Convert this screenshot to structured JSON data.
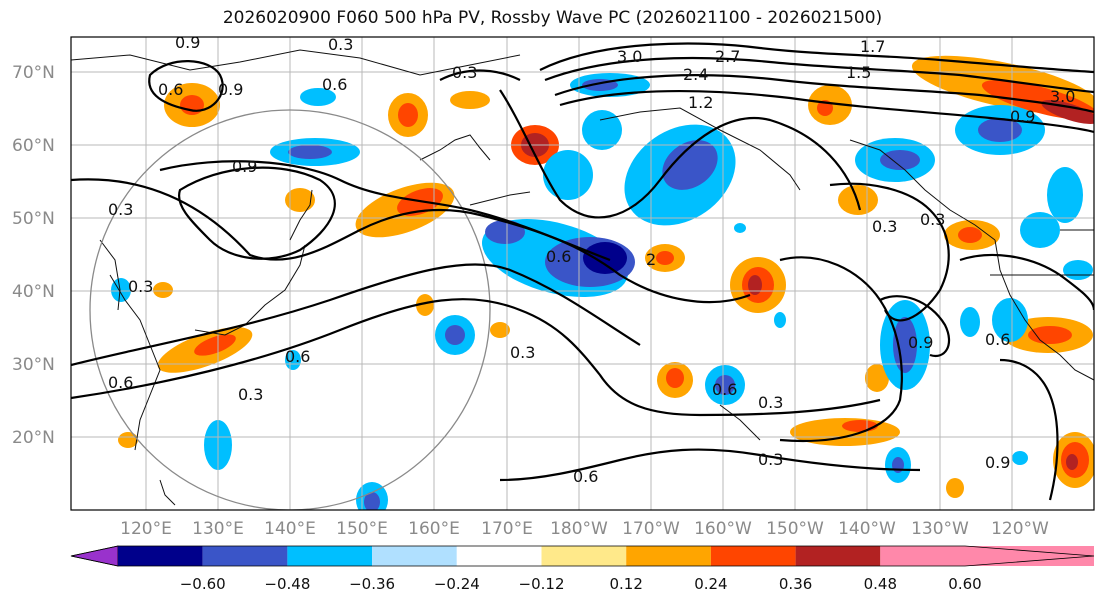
{
  "title": "2026020900 F060 500 hPa PV, Rossby Wave PC (2026021100 - 2026021500)",
  "map": {
    "lat_labels": [
      "70°N",
      "60°N",
      "50°N",
      "40°N",
      "30°N",
      "20°N"
    ],
    "lon_labels": [
      "120°E",
      "130°E",
      "140°E",
      "150°E",
      "160°E",
      "170°E",
      "180°W",
      "170°W",
      "160°W",
      "150°W",
      "140°W",
      "130°W",
      "120°W"
    ],
    "contour_labels": [
      "0.9",
      "0.3",
      "0.6",
      "0.9",
      "0.6",
      "0.9",
      "0.3",
      "0.3",
      "0.6",
      "0.3",
      "0.6",
      "0.3",
      "0.6",
      "0.3",
      "3.0",
      "2.4",
      "2.7",
      "1.2",
      "1.5",
      "1.7",
      "3.0",
      "0.9",
      "0.3",
      "0.3",
      "0.9",
      "0.6",
      "0.3",
      "0.3",
      "0.6",
      "0.6",
      "0.9",
      "2"
    ]
  },
  "colorbar": {
    "ticks": [
      "−0.60",
      "−0.48",
      "−0.36",
      "−0.24",
      "−0.12",
      "0.12",
      "0.24",
      "0.36",
      "0.48",
      "0.60"
    ],
    "colors": [
      "#9932cc",
      "#00008b",
      "#3a55c8",
      "#00bfff",
      "#b0e0ff",
      "#ffffff",
      "#ffe98a",
      "#ffa500",
      "#ff4500",
      "#b22222",
      "#ff88aa"
    ]
  }
}
